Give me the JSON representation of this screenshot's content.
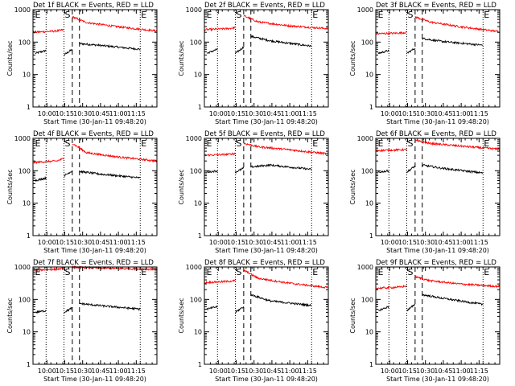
{
  "chart_data": {
    "layout": "3x3 grid of panels",
    "xlabel": "Start Time (30-Jan-11 09:48:20)",
    "ylabel": "Counts/sec",
    "x_tick_labels": [
      "10:00",
      "10:15",
      "10:30",
      "10:45",
      "11:00",
      "11:15"
    ],
    "x_ticks_min_after_start": [
      11.67,
      26.67,
      41.67,
      56.67,
      71.67,
      86.67
    ],
    "xlim_min_after_start": [
      0,
      104
    ],
    "y_scale": "log",
    "y_tick_labels": [
      "1",
      "10",
      "100",
      "1000"
    ],
    "ylim": [
      1,
      1000
    ],
    "series_colors": {
      "events": "#000000",
      "lld": "#ff0000"
    },
    "marker_labels": [
      "E",
      "S",
      "E"
    ],
    "panels": [
      {
        "type": "line",
        "title": "Det 1f BLACK = Events, RED = LLD",
        "series": [
          {
            "color": "#000000",
            "segments": [
              {
                "x": [
                  2,
                  11
                ],
                "y": [
                  45,
                  55
                ]
              },
              {
                "x": [
                  26,
                  33
                ],
                "y": [
                  40,
                  60
                ]
              },
              {
                "x": [
                  39,
                  55,
                  90
                ],
                "y": [
                  90,
                  80,
                  60
                ]
              }
            ]
          },
          {
            "color": "#ff0000",
            "segments": [
              {
                "x": [
                  0,
                  20,
                  26
                ],
                "y": [
                  200,
                  220,
                  240
                ]
              },
              {
                "x": [
                  33,
                  45,
                  70,
                  104
                ],
                "y": [
                  600,
                  400,
                  300,
                  220
                ]
              }
            ]
          }
        ]
      },
      {
        "type": "line",
        "title": "Det 2f BLACK = Events, RED = LLD",
        "series": [
          {
            "color": "#000000",
            "segments": [
              {
                "x": [
                  2,
                  11
                ],
                "y": [
                  45,
                  60
                ]
              },
              {
                "x": [
                  26,
                  33
                ],
                "y": [
                  45,
                  70
                ]
              },
              {
                "x": [
                  39,
                  55,
                  90
                ],
                "y": [
                  150,
                  110,
                  75
                ]
              }
            ]
          },
          {
            "color": "#ff0000",
            "segments": [
              {
                "x": [
                  0,
                  20,
                  26
                ],
                "y": [
                  240,
                  260,
                  280
                ]
              },
              {
                "x": [
                  33,
                  45,
                  70,
                  104
                ],
                "y": [
                  650,
                  420,
                  320,
                  260
                ]
              }
            ]
          }
        ]
      },
      {
        "type": "line",
        "title": "Det 3f BLACK = Events, RED = LLD",
        "series": [
          {
            "color": "#000000",
            "segments": [
              {
                "x": [
                  2,
                  11
                ],
                "y": [
                  45,
                  55
                ]
              },
              {
                "x": [
                  26,
                  33
                ],
                "y": [
                  45,
                  65
                ]
              },
              {
                "x": [
                  39,
                  55,
                  90
                ],
                "y": [
                  130,
                  105,
                  80
                ]
              }
            ]
          },
          {
            "color": "#ff0000",
            "segments": [
              {
                "x": [
                  0,
                  20,
                  26
                ],
                "y": [
                  180,
                  190,
                  200
                ]
              },
              {
                "x": [
                  33,
                  45,
                  70,
                  104
                ],
                "y": [
                  600,
                  420,
                  300,
                  210
                ]
              }
            ]
          }
        ]
      },
      {
        "type": "line",
        "title": "Det 4f BLACK = Events, RED = LLD",
        "series": [
          {
            "color": "#000000",
            "segments": [
              {
                "x": [
                  2,
                  11
                ],
                "y": [
                  50,
                  60
                ]
              },
              {
                "x": [
                  26,
                  33
                ],
                "y": [
                  70,
                  100
                ]
              },
              {
                "x": [
                  39,
                  55,
                  90
                ],
                "y": [
                  95,
                  80,
                  60
                ]
              }
            ]
          },
          {
            "color": "#ff0000",
            "segments": [
              {
                "x": [
                  0,
                  20,
                  26
                ],
                "y": [
                  180,
                  200,
                  240
                ]
              },
              {
                "x": [
                  33,
                  45,
                  70,
                  104
                ],
                "y": [
                  700,
                  360,
                  270,
                  200
                ]
              }
            ]
          }
        ]
      },
      {
        "type": "line",
        "title": "Det 5f BLACK = Events, RED = LLD",
        "series": [
          {
            "color": "#000000",
            "segments": [
              {
                "x": [
                  2,
                  11
                ],
                "y": [
                  90,
                  100
                ]
              },
              {
                "x": [
                  26,
                  33
                ],
                "y": [
                  90,
                  120
                ]
              },
              {
                "x": [
                  39,
                  55,
                  90
                ],
                "y": [
                  130,
                  150,
                  110
                ]
              }
            ]
          },
          {
            "color": "#ff0000",
            "segments": [
              {
                "x": [
                  0,
                  20,
                  26
                ],
                "y": [
                  300,
                  320,
                  340
                ]
              },
              {
                "x": [
                  33,
                  45,
                  70,
                  104
                ],
                "y": [
                  700,
                  550,
                  450,
                  330
                ]
              }
            ]
          }
        ]
      },
      {
        "type": "line",
        "title": "Det 6f BLACK = Events, RED = LLD",
        "series": [
          {
            "color": "#000000",
            "segments": [
              {
                "x": [
                  2,
                  11
                ],
                "y": [
                  90,
                  100
                ]
              },
              {
                "x": [
                  26,
                  33
                ],
                "y": [
                  90,
                  140
                ]
              },
              {
                "x": [
                  39,
                  55,
                  90
                ],
                "y": [
                  150,
                  120,
                  85
                ]
              }
            ]
          },
          {
            "color": "#ff0000",
            "segments": [
              {
                "x": [
                  0,
                  20,
                  26
                ],
                "y": [
                  420,
                  440,
                  450
                ]
              },
              {
                "x": [
                  33,
                  45,
                  70,
                  104
                ],
                "y": [
                  850,
                  700,
                  580,
                  460
                ]
              }
            ]
          }
        ]
      },
      {
        "type": "line",
        "title": "Det 7f BLACK = Events, RED = LLD",
        "series": [
          {
            "color": "#000000",
            "segments": [
              {
                "x": [
                  2,
                  11
                ],
                "y": [
                  40,
                  45
                ]
              },
              {
                "x": [
                  26,
                  33
                ],
                "y": [
                  40,
                  55
                ]
              },
              {
                "x": [
                  39,
                  55,
                  90
                ],
                "y": [
                  75,
                  65,
                  50
                ]
              }
            ]
          },
          {
            "color": "#ff0000",
            "segments": [
              {
                "x": [
                  0,
                  20,
                  26
                ],
                "y": [
                  800,
                  850,
                  900
                ]
              },
              {
                "x": [
                  33,
                  45,
                  70,
                  104
                ],
                "y": [
                  1000,
                  950,
                  900,
                  850
                ]
              }
            ]
          }
        ]
      },
      {
        "type": "line",
        "title": "Det 8f BLACK = Events, RED = LLD",
        "series": [
          {
            "color": "#000000",
            "segments": [
              {
                "x": [
                  2,
                  11
                ],
                "y": [
                  50,
                  60
                ]
              },
              {
                "x": [
                  26,
                  33
                ],
                "y": [
                  40,
                  60
                ]
              },
              {
                "x": [
                  39,
                  55,
                  90
                ],
                "y": [
                  140,
                  90,
                  65
                ]
              }
            ]
          },
          {
            "color": "#ff0000",
            "segments": [
              {
                "x": [
                  0,
                  20,
                  26
                ],
                "y": [
                  330,
                  360,
                  380
                ]
              },
              {
                "x": [
                  33,
                  45,
                  70,
                  104
                ],
                "y": [
                  800,
                  450,
                  320,
                  230
                ]
              }
            ]
          }
        ]
      },
      {
        "type": "line",
        "title": "Det 9f BLACK = Events, RED = LLD",
        "series": [
          {
            "color": "#000000",
            "segments": [
              {
                "x": [
                  2,
                  11
                ],
                "y": [
                  45,
                  60
                ]
              },
              {
                "x": [
                  26,
                  33
                ],
                "y": [
                  45,
                  70
                ]
              },
              {
                "x": [
                  39,
                  55,
                  90
                ],
                "y": [
                  140,
                  110,
                  70
                ]
              }
            ]
          },
          {
            "color": "#ff0000",
            "segments": [
              {
                "x": [
                  0,
                  20,
                  26
                ],
                "y": [
                  220,
                  240,
                  260
                ]
              },
              {
                "x": [
                  33,
                  45,
                  70,
                  104
                ],
                "y": [
                  500,
                  380,
                  300,
                  250
                ]
              }
            ]
          }
        ]
      }
    ]
  }
}
